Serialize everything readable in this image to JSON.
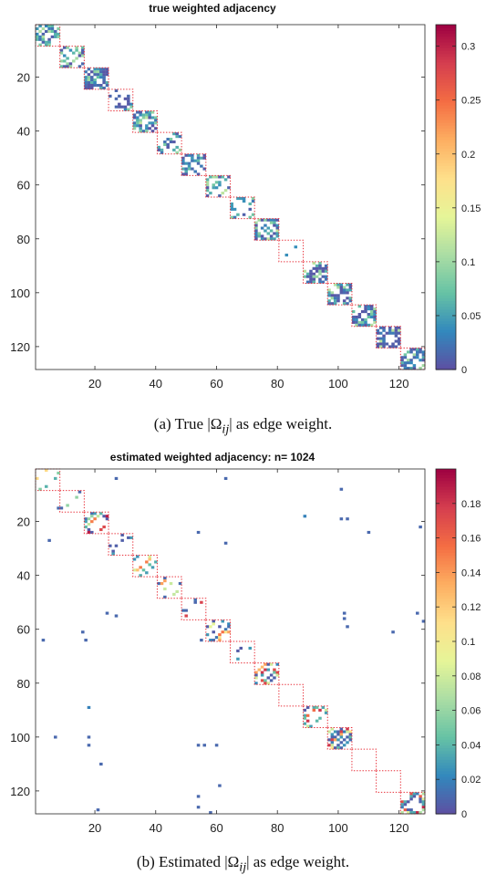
{
  "chart_data": [
    {
      "type": "heatmap",
      "title": "true weighted adjacency",
      "xlim": [
        0.5,
        128.5
      ],
      "ylim": [
        0.5,
        128.5
      ],
      "y_reversed": true,
      "xticks": [
        20,
        40,
        60,
        80,
        100,
        120
      ],
      "yticks": [
        20,
        40,
        60,
        80,
        100,
        120
      ],
      "colorbar": {
        "min": 0,
        "max": 0.32,
        "ticks": [
          0,
          0.05,
          0.1,
          0.15,
          0.2,
          0.25,
          0.3
        ],
        "tick_labels": [
          "0",
          "0.05",
          "0.1",
          "0.15",
          "0.2",
          "0.25",
          "0.3"
        ]
      },
      "colormap": "spectral",
      "grid": false,
      "blocks": [
        [
          1,
          8
        ],
        [
          9,
          16
        ],
        [
          17,
          24
        ],
        [
          25,
          32
        ],
        [
          33,
          40
        ],
        [
          41,
          48
        ],
        [
          49,
          56
        ],
        [
          57,
          64
        ],
        [
          65,
          72
        ],
        [
          73,
          80
        ],
        [
          81,
          88
        ],
        [
          89,
          96
        ],
        [
          97,
          104
        ],
        [
          105,
          112
        ],
        [
          113,
          120
        ],
        [
          121,
          128
        ]
      ],
      "block_density": [
        0.62,
        0.55,
        0.68,
        0.5,
        0.66,
        0.6,
        0.58,
        0.5,
        0.45,
        0.66,
        0.05,
        0.55,
        0.7,
        0.5,
        0.7,
        0.55
      ],
      "block_value_range": [
        0.005,
        0.12
      ],
      "offblock_entries": []
    },
    {
      "type": "heatmap",
      "title": "estimated weighted adjacency: n= 1024",
      "xlim": [
        0.5,
        128.5
      ],
      "ylim": [
        0.5,
        128.5
      ],
      "y_reversed": true,
      "xticks": [
        20,
        40,
        60,
        80,
        100,
        120
      ],
      "yticks": [
        20,
        40,
        60,
        80,
        100,
        120
      ],
      "colorbar": {
        "min": 0,
        "max": 0.2,
        "ticks": [
          0,
          0.02,
          0.04,
          0.06,
          0.08,
          0.1,
          0.12,
          0.14,
          0.16,
          0.18
        ],
        "tick_labels": [
          "0",
          "0.02",
          "0.04",
          "0.06",
          "0.08",
          "0.1",
          "0.12",
          "0.14",
          "0.16",
          "0.18"
        ]
      },
      "colormap": "spectral",
      "grid": false,
      "blocks": [
        [
          1,
          8
        ],
        [
          9,
          16
        ],
        [
          17,
          24
        ],
        [
          25,
          32
        ],
        [
          33,
          40
        ],
        [
          41,
          48
        ],
        [
          49,
          56
        ],
        [
          57,
          64
        ],
        [
          65,
          72
        ],
        [
          73,
          80
        ],
        [
          81,
          88
        ],
        [
          89,
          96
        ],
        [
          97,
          104
        ],
        [
          105,
          112
        ],
        [
          113,
          120
        ],
        [
          121,
          128
        ]
      ],
      "block_density": [
        0.3,
        0.03,
        0.38,
        0.12,
        0.12,
        0.22,
        0.12,
        0.26,
        0.12,
        0.35,
        0.0,
        0.36,
        0.45,
        0.03,
        0.18,
        0.4
      ],
      "block_value_range": [
        0.005,
        0.19
      ],
      "offblock_entries": [
        [
          27,
          4,
          0.01
        ],
        [
          63,
          4,
          0.01
        ],
        [
          101,
          8,
          0.01
        ],
        [
          8,
          15,
          0.01
        ],
        [
          89,
          18,
          0.02
        ],
        [
          101,
          19,
          0.01
        ],
        [
          103,
          19,
          0.01
        ],
        [
          127,
          22,
          0.01
        ],
        [
          54,
          24,
          0.01
        ],
        [
          110,
          24,
          0.01
        ],
        [
          5,
          27,
          0.01
        ],
        [
          63,
          28,
          0.01
        ],
        [
          24,
          54,
          0.01
        ],
        [
          102,
          54,
          0.01
        ],
        [
          126,
          54,
          0.01
        ],
        [
          27,
          55,
          0.01
        ],
        [
          102,
          56,
          0.01
        ],
        [
          128,
          57,
          0.01
        ],
        [
          103,
          59,
          0.01
        ],
        [
          16,
          61,
          0.01
        ],
        [
          118,
          61,
          0.01
        ],
        [
          3,
          64,
          0.01
        ],
        [
          17,
          64,
          0.01
        ],
        [
          55,
          64,
          0.01
        ],
        [
          18,
          89,
          0.02
        ],
        [
          7,
          100,
          0.01
        ],
        [
          18,
          100,
          0.01
        ],
        [
          18,
          103,
          0.01
        ],
        [
          54,
          103,
          0.01
        ],
        [
          56,
          103,
          0.01
        ],
        [
          60,
          103,
          0.01
        ],
        [
          22,
          110,
          0.01
        ],
        [
          61,
          118,
          0.01
        ],
        [
          54,
          122,
          0.01
        ],
        [
          54,
          126,
          0.01
        ],
        [
          21,
          127,
          0.01
        ],
        [
          58,
          128,
          0.01
        ]
      ]
    }
  ],
  "captions": {
    "a_prefix": "(a) True ",
    "a_symbol": "|Ω",
    "a_sub": "ij",
    "a_suffix": "| as edge weight.",
    "b_prefix": "(b) Estimated ",
    "b_symbol": "|Ω",
    "b_sub": "ij",
    "b_suffix": "| as edge weight."
  }
}
